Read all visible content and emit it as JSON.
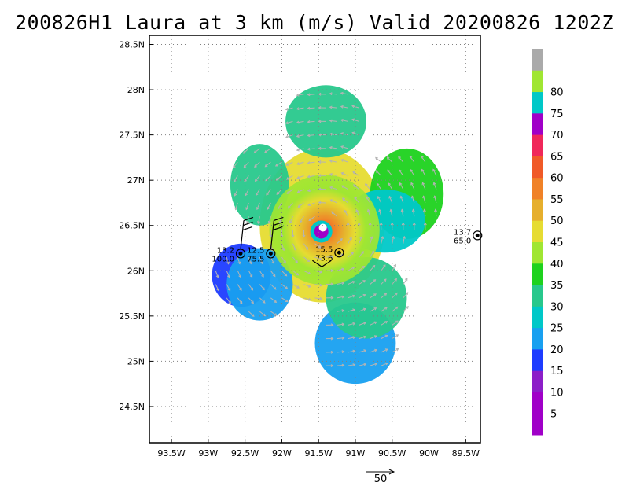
{
  "title": "200826H1 Laura at 3 km (m/s) Valid 20200826 1202Z",
  "map": {
    "lon_range": [
      -93.8,
      -89.3
    ],
    "lat_range": [
      24.1,
      28.6
    ],
    "lon_ticks": [
      {
        "value": -93.5,
        "label": "93.5W"
      },
      {
        "value": -93.0,
        "label": "93W"
      },
      {
        "value": -92.5,
        "label": "92.5W"
      },
      {
        "value": -92.0,
        "label": "92W"
      },
      {
        "value": -91.5,
        "label": "91.5W"
      },
      {
        "value": -91.0,
        "label": "91W"
      },
      {
        "value": -90.5,
        "label": "90.5W"
      },
      {
        "value": -90.0,
        "label": "90W"
      },
      {
        "value": -89.5,
        "label": "89.5W"
      }
    ],
    "lat_ticks": [
      {
        "value": 24.5,
        "label": "24.5N"
      },
      {
        "value": 25.0,
        "label": "25N"
      },
      {
        "value": 25.5,
        "label": "25.5N"
      },
      {
        "value": 26.0,
        "label": "26N"
      },
      {
        "value": 26.5,
        "label": "26.5N"
      },
      {
        "value": 27.0,
        "label": "27N"
      },
      {
        "value": 27.5,
        "label": "27.5N"
      },
      {
        "value": 28.0,
        "label": "28N"
      },
      {
        "value": 28.5,
        "label": "28.5N"
      }
    ],
    "grid": "dotted",
    "storm_center": {
      "lon": -91.42,
      "lat": 26.45
    },
    "rmw_deg": 0.2
  },
  "colorbar": {
    "levels": [
      {
        "label": "",
        "color": "#a000c8"
      },
      {
        "label": "5",
        "color": "#a000c8"
      },
      {
        "label": "10",
        "color": "#8c1ec8"
      },
      {
        "label": "15",
        "color": "#1e3cff"
      },
      {
        "label": "20",
        "color": "#18a0f0"
      },
      {
        "label": "25",
        "color": "#00c8c8"
      },
      {
        "label": "30",
        "color": "#28c88c"
      },
      {
        "label": "35",
        "color": "#1ed21e"
      },
      {
        "label": "40",
        "color": "#a0e632"
      },
      {
        "label": "45",
        "color": "#e6dc32"
      },
      {
        "label": "50",
        "color": "#e6af2d"
      },
      {
        "label": "55",
        "color": "#f08228"
      },
      {
        "label": "60",
        "color": "#f05a28"
      },
      {
        "label": "65",
        "color": "#f0285a"
      },
      {
        "label": "70",
        "color": "#a000c8"
      },
      {
        "label": "75",
        "color": "#00c8c8"
      },
      {
        "label": "80",
        "color": "#a0e632"
      },
      {
        "label": "",
        "color": "#aaaaaa"
      }
    ]
  },
  "observations": [
    {
      "lon": -92.56,
      "lat": 26.19,
      "wind": "13.2",
      "pressure": "100.0"
    },
    {
      "lon": -92.15,
      "lat": 26.19,
      "wind": "12.5",
      "pressure": "75.5"
    },
    {
      "lon": -91.22,
      "lat": 26.2,
      "wind": "15.5",
      "pressure": "73.6"
    },
    {
      "lon": -89.34,
      "lat": 26.39,
      "wind": "13.7",
      "pressure": "65.0"
    }
  ],
  "reference_vector": {
    "label": "50"
  }
}
